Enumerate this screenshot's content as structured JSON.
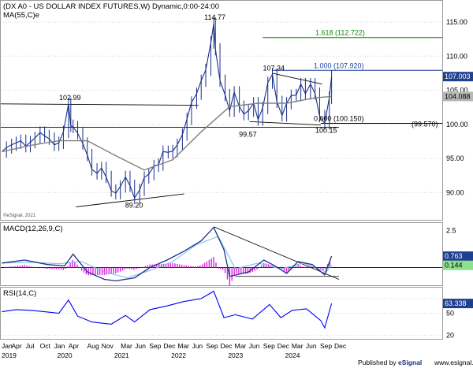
{
  "chart_data": [
    {
      "type": "line",
      "title": "(DX A0 - US DOLLAR INDEX FUTURES,W) Dynamic,0:00-24:00",
      "indicator_label": "MA(55,C)e",
      "xlabel": "",
      "ylabel": "",
      "ylim": [
        86,
        118
      ],
      "y_ticks": [
        "90.00",
        "95.00",
        "100.00",
        "105.00",
        "110.00",
        "115.00"
      ],
      "x_ticks": [
        "Jan",
        "Apr",
        "Jul",
        "Oct",
        "Jan",
        "Apr",
        "Aug",
        "Nov",
        "Mar",
        "Jun",
        "Sep",
        "Dec",
        "Mar",
        "Jun",
        "Sep",
        "Dec",
        "Mar",
        "Jun",
        "Sep",
        "Dec",
        "Mar",
        "Jun",
        "Sep",
        "Dec"
      ],
      "years": [
        "2019",
        "2020",
        "2021",
        "2022",
        "2023",
        "2024"
      ],
      "series": [
        {
          "name": "price",
          "x": [
            2019.0,
            2019.08,
            2019.17,
            2019.25,
            2019.33,
            2019.42,
            2019.5,
            2019.58,
            2019.67,
            2019.75,
            2019.83,
            2019.92,
            2020.0,
            2020.08,
            2020.17,
            2020.21,
            2020.25,
            2020.33,
            2020.42,
            2020.5,
            2020.58,
            2020.67,
            2020.75,
            2020.83,
            2020.92,
            2021.0,
            2021.08,
            2021.17,
            2021.25,
            2021.33,
            2021.42,
            2021.5,
            2021.58,
            2021.67,
            2021.75,
            2021.83,
            2021.92,
            2022.0,
            2022.08,
            2022.17,
            2022.25,
            2022.33,
            2022.42,
            2022.5,
            2022.58,
            2022.67,
            2022.72,
            2022.75,
            2022.83,
            2022.92,
            2023.0,
            2023.08,
            2023.17,
            2023.25,
            2023.33,
            2023.42,
            2023.5,
            2023.58,
            2023.67,
            2023.75,
            2023.83,
            2023.92,
            2024.0,
            2024.08,
            2024.17,
            2024.25,
            2024.33,
            2024.42,
            2024.5,
            2024.58,
            2024.67,
            2024.75,
            2024.79
          ],
          "values": [
            96.0,
            96.6,
            97.0,
            97.3,
            97.6,
            96.8,
            97.4,
            98.0,
            98.8,
            98.3,
            97.9,
            97.0,
            97.3,
            98.9,
            102.99,
            99.8,
            99.6,
            98.7,
            97.2,
            95.5,
            93.4,
            92.8,
            93.6,
            92.3,
            90.3,
            89.9,
            90.9,
            92.3,
            91.0,
            89.2,
            90.4,
            92.2,
            92.7,
            93.9,
            94.1,
            96.0,
            95.9,
            96.1,
            97.0,
            98.5,
            100.8,
            103.2,
            104.5,
            106.4,
            108.0,
            112.0,
            114.77,
            111.0,
            106.4,
            104.3,
            102.0,
            104.7,
            102.6,
            101.5,
            102.0,
            103.1,
            100.7,
            102.4,
            106.1,
            107.34,
            103.3,
            101.3,
            103.1,
            104.2,
            104.3,
            105.9,
            104.5,
            105.9,
            104.5,
            101.2,
            100.15,
            103.9,
            107.003
          ]
        },
        {
          "name": "MA(55,C)e",
          "x": [
            2019.0,
            2019.5,
            2020.0,
            2020.5,
            2021.0,
            2021.5,
            2022.0,
            2022.5,
            2023.0,
            2023.5,
            2024.0,
            2024.5,
            2024.79
          ],
          "values": [
            96.0,
            96.9,
            97.6,
            97.6,
            95.4,
            93.3,
            94.8,
            98.9,
            102.6,
            103.1,
            103.1,
            103.9,
            104.088
          ]
        }
      ],
      "annotations": [
        {
          "text": "102.99",
          "x": 2020.17,
          "y": 102.99
        },
        {
          "text": "89.20",
          "x": 2021.33,
          "y": 89.2
        },
        {
          "text": "114.77",
          "x": 2022.72,
          "y": 114.77
        },
        {
          "text": "107.34",
          "x": 2023.75,
          "y": 107.34
        },
        {
          "text": "99.57",
          "x": 2023.33,
          "y": 99.57
        },
        {
          "text": "100.15",
          "x": 2024.67,
          "y": 100.15
        }
      ],
      "fib_levels": [
        {
          "text": "1.618 (112.722)",
          "y": 112.722,
          "color": "#0a8a0a"
        },
        {
          "text": "1.000 (107.920)",
          "y": 107.92,
          "color": "#1a3c9c"
        },
        {
          "text": "0.000 (100.150)",
          "y": 100.15,
          "color": "#000000"
        }
      ],
      "support_label": "(99.570)",
      "support_y": 99.57,
      "price_tags": [
        {
          "text": "107.003",
          "y": 107.003,
          "bg": "#1f3f8f"
        },
        {
          "text": "104.088",
          "y": 104.088,
          "bg": "#b8b8b8"
        }
      ],
      "watermark": "©eSignal, 2021"
    },
    {
      "type": "line",
      "title": "MACD(12,26,9,C)",
      "ylim": [
        -1.2,
        3.0
      ],
      "y_ticks": [
        "2.5"
      ],
      "series": [
        {
          "name": "MACD",
          "x": [
            2019.0,
            2019.4,
            2019.8,
            2020.1,
            2020.25,
            2020.5,
            2020.8,
            2021.0,
            2021.33,
            2021.6,
            2021.9,
            2022.2,
            2022.5,
            2022.72,
            2022.9,
            2023.0,
            2023.33,
            2023.6,
            2023.8,
            2024.0,
            2024.2,
            2024.45,
            2024.67,
            2024.79
          ],
          "values": [
            0.3,
            0.5,
            0.2,
            0.1,
            0.9,
            -0.3,
            -0.8,
            -0.9,
            -0.7,
            0.0,
            0.5,
            1.1,
            1.8,
            2.7,
            1.2,
            -0.6,
            -0.3,
            0.5,
            0.1,
            -0.4,
            0.4,
            0.2,
            -0.5,
            0.763
          ]
        },
        {
          "name": "Signal",
          "x": [
            2019.0,
            2019.5,
            2020.0,
            2020.4,
            2020.8,
            2021.2,
            2021.6,
            2022.0,
            2022.4,
            2022.8,
            2023.1,
            2023.5,
            2023.9,
            2024.3,
            2024.7,
            2024.79
          ],
          "values": [
            0.3,
            0.35,
            0.25,
            0.4,
            -0.3,
            -0.7,
            -0.2,
            0.4,
            1.5,
            2.1,
            -0.1,
            0.3,
            -0.1,
            0.3,
            -0.3,
            0.144
          ]
        }
      ],
      "last_values": [
        {
          "text": "0.763",
          "y": 0.763,
          "bg": "#1f3f8f"
        },
        {
          "text": "0.144",
          "y": 0.144,
          "bg": "#8ee08e"
        }
      ]
    },
    {
      "type": "line",
      "title": "RSI(14,C)",
      "ylim": [
        15,
        85
      ],
      "y_ticks": [
        "50",
        "20"
      ],
      "series": [
        {
          "name": "RSI",
          "x": [
            2019.0,
            2019.25,
            2019.5,
            2019.75,
            2020.0,
            2020.17,
            2020.33,
            2020.58,
            2020.92,
            2021.17,
            2021.33,
            2021.6,
            2021.9,
            2022.2,
            2022.5,
            2022.72,
            2022.9,
            2023.1,
            2023.4,
            2023.7,
            2023.9,
            2024.1,
            2024.35,
            2024.6,
            2024.67,
            2024.79
          ],
          "values": [
            52,
            55,
            54,
            52,
            50,
            68,
            46,
            38,
            35,
            47,
            38,
            55,
            60,
            66,
            70,
            80,
            44,
            48,
            42,
            62,
            44,
            54,
            56,
            40,
            30,
            63.338
          ]
        }
      ],
      "last_values": [
        {
          "text": "63.338",
          "y": 63.338,
          "bg": "#1f3f8f"
        }
      ]
    }
  ],
  "footer": {
    "published_by": "Published by ",
    "brand": "eSignal",
    "site": "www.esignal.com"
  },
  "colors": {
    "price": "#1a2f8a",
    "ma": "#808080",
    "macd": "#1a2f8a",
    "signal": "#7ec0e8",
    "histogram": "#e020e0",
    "rsi": "#0000ee",
    "grid": "#d6d6d6",
    "trend": "#000000"
  }
}
